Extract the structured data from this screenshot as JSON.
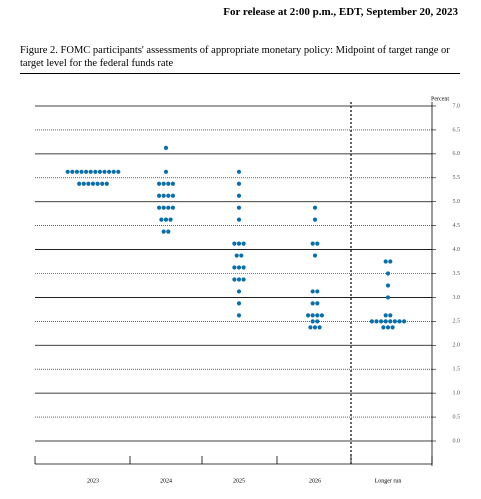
{
  "header": "For release at 2:00 p.m., EDT, September 20, 2023",
  "chart_data": {
    "type": "dotplot",
    "title": "Figure 2.  FOMC participants' assessments of appropriate monetary policy: Midpoint of target range or target level for the federal funds rate",
    "y_label": "Percent",
    "color": "#0a6fa8",
    "categories": [
      "2023",
      "2024",
      "2025",
      "2026",
      "Longer run"
    ],
    "dots": [
      [
        {
          "rate": 5.625,
          "count": 12
        },
        {
          "rate": 5.375,
          "count": 7
        }
      ],
      [
        {
          "rate": 6.125,
          "count": 1
        },
        {
          "rate": 5.625,
          "count": 1
        },
        {
          "rate": 5.375,
          "count": 4
        },
        {
          "rate": 5.125,
          "count": 4
        },
        {
          "rate": 4.875,
          "count": 4
        },
        {
          "rate": 4.625,
          "count": 3
        },
        {
          "rate": 4.375,
          "count": 2
        }
      ],
      [
        {
          "rate": 5.625,
          "count": 1
        },
        {
          "rate": 5.375,
          "count": 1
        },
        {
          "rate": 5.125,
          "count": 1
        },
        {
          "rate": 4.875,
          "count": 1
        },
        {
          "rate": 4.625,
          "count": 1
        },
        {
          "rate": 4.125,
          "count": 3
        },
        {
          "rate": 3.875,
          "count": 2
        },
        {
          "rate": 3.625,
          "count": 3
        },
        {
          "rate": 3.375,
          "count": 3
        },
        {
          "rate": 3.125,
          "count": 1
        },
        {
          "rate": 2.875,
          "count": 1
        },
        {
          "rate": 2.625,
          "count": 1
        }
      ],
      [
        {
          "rate": 4.875,
          "count": 1
        },
        {
          "rate": 4.625,
          "count": 1
        },
        {
          "rate": 4.125,
          "count": 2
        },
        {
          "rate": 3.875,
          "count": 1
        },
        {
          "rate": 3.125,
          "count": 2
        },
        {
          "rate": 2.875,
          "count": 2
        },
        {
          "rate": 2.625,
          "count": 4
        },
        {
          "rate": 2.5,
          "count": 2
        },
        {
          "rate": 2.375,
          "count": 3
        }
      ],
      [
        {
          "rate": 3.75,
          "count": 2
        },
        {
          "rate": 3.5,
          "count": 1
        },
        {
          "rate": 3.25,
          "count": 1
        },
        {
          "rate": 3,
          "count": 1
        },
        {
          "rate": 2.625,
          "count": 2
        },
        {
          "rate": 2.5,
          "count": 8
        },
        {
          "rate": 2.375,
          "count": 3
        }
      ]
    ],
    "ylim": [
      0,
      7
    ],
    "yticks": [
      {
        "value": 0,
        "label": "0.0"
      },
      0.5,
      {
        "value": 1,
        "label": "1.0"
      },
      1.5,
      {
        "value": 2,
        "label": "2.0"
      },
      2.5,
      {
        "value": 3,
        "label": "3.0"
      },
      3.5,
      {
        "value": 4,
        "label": "4.0"
      },
      4.5,
      {
        "value": 5,
        "label": "5.0"
      },
      5.5,
      {
        "value": 6,
        "label": "6.0"
      },
      6.5,
      {
        "value": 7,
        "label": "7.0"
      }
    ],
    "grid": true
  }
}
